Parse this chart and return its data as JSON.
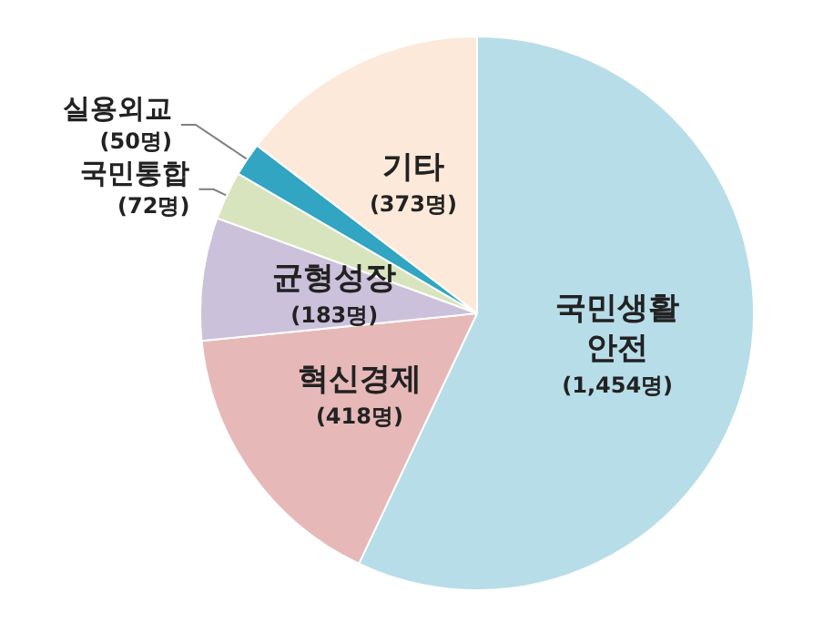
{
  "chart_data": {
    "type": "pie",
    "categories": [
      "국민생활안전",
      "혁신경제",
      "균형성장",
      "국민통합",
      "실용외교",
      "기타"
    ],
    "values": [
      1454,
      418,
      183,
      72,
      50,
      373
    ],
    "value_labels": [
      "(1,454명)",
      "(418명)",
      "(183명)",
      "(72명)",
      "(50명)",
      "(373명)"
    ],
    "colors": [
      "#b7dde8",
      "#e6b9b8",
      "#ccc1da",
      "#d7e4bd",
      "#31a5c2",
      "#fde9d9"
    ]
  }
}
